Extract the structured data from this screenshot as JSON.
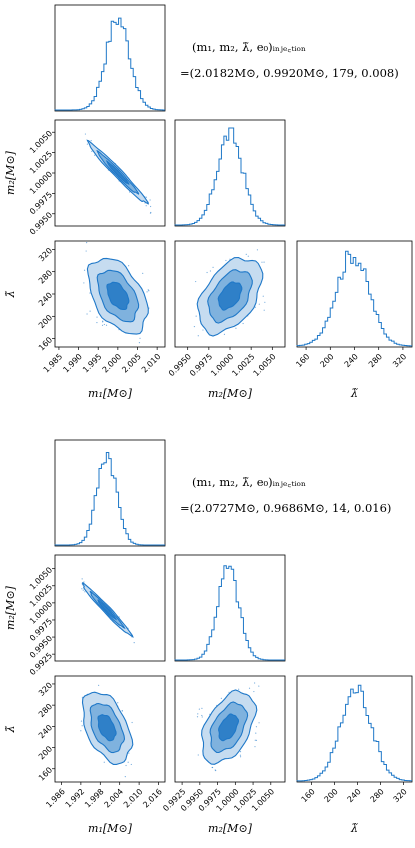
{
  "chart_data": [
    {
      "type": "corner",
      "injection_label": "(m₁, m₂, λ̃, e₀)ᵢₙⱼₑ꜀ₜᵢₒₙ",
      "injection_values": "=(2.0182M⊙, 0.9920M⊙, 179, 0.008)",
      "parameters": [
        "m1",
        "m2",
        "lambda_tilde"
      ],
      "xlabels": [
        "m₁[M⊙]",
        "m₂[M⊙]",
        "λ̃"
      ],
      "ylabels": [
        "",
        "m₂[M⊙]",
        "λ̃"
      ],
      "ranges": {
        "m1": [
          1.984,
          2.012
        ],
        "m2": [
          0.9935,
          1.0065
        ],
        "lambda_tilde": [
          145,
          335
        ]
      },
      "ticks": {
        "m1": [
          "1.985",
          "1.990",
          "1.995",
          "2.000",
          "2.005",
          "2.010"
        ],
        "m2": [
          "0.9950",
          "0.9975",
          "1.0000",
          "1.0025",
          "1.0050"
        ],
        "lambda_tilde": [
          "160",
          "200",
          "240",
          "280",
          "320"
        ]
      },
      "posterior": {
        "m1_mean": 2.0,
        "m1_std": 0.003,
        "m2_mean": 1.0,
        "m2_std": 0.0015,
        "lambda_mean": 237,
        "lambda_std": 27
      },
      "correlations": {
        "m1_m2": -0.98,
        "m1_lambda": -0.45,
        "m2_lambda": 0.45
      }
    },
    {
      "type": "corner",
      "injection_label": "(m₁, m₂, λ̃, e₀)ᵢₙⱼₑ꜀ₜᵢₒₙ",
      "injection_values": "=(2.0727M⊙, 0.9686M⊙, 14, 0.016)",
      "parameters": [
        "m1",
        "m2",
        "lambda_tilde"
      ],
      "xlabels": [
        "m₁[M⊙]",
        "m₂[M⊙]",
        "λ̃"
      ],
      "ylabels": [
        "",
        "m₂[M⊙]",
        "λ̃"
      ],
      "ranges": {
        "m1": [
          1.984,
          2.018
        ],
        "m2": [
          0.9915,
          1.007
        ],
        "lambda_tilde": [
          135,
          335
        ]
      },
      "ticks": {
        "m1": [
          "1.986",
          "1.992",
          "1.998",
          "2.004",
          "2.010",
          "2.016"
        ],
        "m2": [
          "0.9925",
          "0.9950",
          "0.9975",
          "1.0000",
          "1.0025",
          "1.0050"
        ],
        "lambda_tilde": [
          "160",
          "200",
          "240",
          "280",
          "320"
        ]
      },
      "posterior": {
        "m1_mean": 2.0,
        "m1_std": 0.003,
        "m2_mean": 0.999,
        "m2_std": 0.0015,
        "lambda_mean": 238,
        "lambda_std": 27
      },
      "correlations": {
        "m1_m2": -0.98,
        "m1_lambda": -0.45,
        "m2_lambda": 0.45
      }
    }
  ],
  "colors": {
    "line": "#1f78c8",
    "fill_outer": "#c6dcf0",
    "fill_mid": "#7fb2de",
    "fill_inner": "#2f80c8"
  }
}
